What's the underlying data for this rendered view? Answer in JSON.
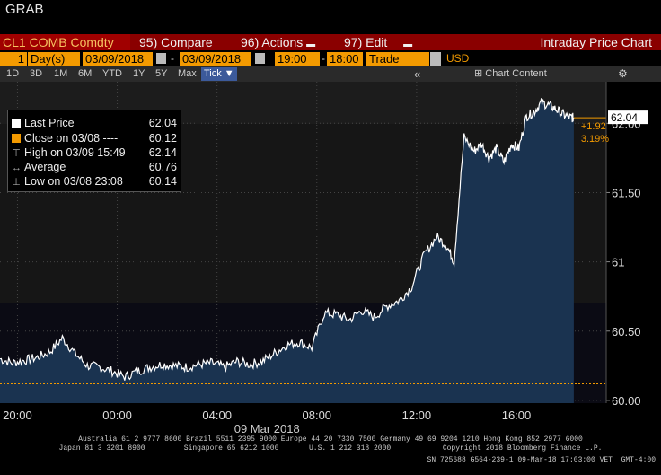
{
  "window_title": "GRAB",
  "menu": {
    "ticker": "CL1 COMB Comdty",
    "compare_num": "95)",
    "compare": "Compare",
    "actions_num": "96)",
    "actions": "Actions",
    "edit_num": "97)",
    "edit": "Edit",
    "title": "Intraday Price Chart"
  },
  "toolbar": {
    "period_value": "1",
    "period_unit": "Day(s)",
    "start_date": "03/09/2018",
    "date_sep": "-",
    "end_date": "03/09/2018",
    "start_time": "19:00",
    "time_sep": "-",
    "end_time": "18:00",
    "field": "Trade",
    "currency": "USD",
    "chart_content": "Chart Content"
  },
  "ranges": [
    "1D",
    "3D",
    "1M",
    "6M",
    "YTD",
    "1Y",
    "5Y",
    "Max"
  ],
  "tick_button": "Tick ▼",
  "legend": {
    "last_price_label": "Last Price",
    "last_price_value": "62.04",
    "close_label": "Close on 03/08 ----",
    "close_value": "60.12",
    "high_label": "High on 03/09 15:49",
    "high_value": "62.14",
    "average_label": "Average",
    "average_value": "60.76",
    "low_label": "Low on 03/08 23:08",
    "low_value": "60.14"
  },
  "annotations": {
    "change": "+1.92",
    "change_pct": "3.19%",
    "last_tag": "62.04"
  },
  "colors": {
    "accent": "#f39a00",
    "menu_red": "#8a0000",
    "area_fill": "#1a3350",
    "line": "#ffffff"
  },
  "chart_data": {
    "type": "area",
    "x_labels": [
      "20:00",
      "00:00",
      "04:00",
      "08:00",
      "12:00",
      "16:00"
    ],
    "date_label": "09 Mar 2018",
    "y_ticks": [
      "60.00",
      "60.50",
      "61",
      "61.50",
      "62.00"
    ],
    "ylim": [
      59.98,
      62.3
    ],
    "reference_line": 60.12,
    "x_hours": [
      0,
      0.5,
      1,
      1.5,
      2,
      2.5,
      3,
      3.5,
      4,
      4.5,
      5,
      5.5,
      6,
      6.5,
      7,
      7.5,
      8,
      8.5,
      9,
      9.5,
      10,
      10.5,
      11,
      11.5,
      12,
      12.5,
      13,
      13.5,
      14,
      14.5,
      15,
      15.5,
      16,
      16.5,
      17,
      17.5,
      17.9,
      18.2,
      18.6,
      19,
      19.3,
      19.6,
      19.9,
      20.2,
      20.5,
      20.8,
      21.1,
      21.4,
      21.7,
      22,
      22.3,
      22.6,
      22.9,
      23
    ],
    "values": [
      60.3,
      60.27,
      60.29,
      60.31,
      60.35,
      60.45,
      60.34,
      60.25,
      60.24,
      60.21,
      60.17,
      60.21,
      60.24,
      60.26,
      60.25,
      60.24,
      60.26,
      60.27,
      60.24,
      60.28,
      60.26,
      60.28,
      60.34,
      60.4,
      60.42,
      60.38,
      60.63,
      60.62,
      60.58,
      60.65,
      60.6,
      60.68,
      60.72,
      60.82,
      61.05,
      61.18,
      61.12,
      61.0,
      61.9,
      61.8,
      61.85,
      61.75,
      61.82,
      61.72,
      61.85,
      61.82,
      62.05,
      62.08,
      62.15,
      62.13,
      62.1,
      62.06,
      62.04,
      62.04
    ],
    "last_value": 62.04
  },
  "footer": {
    "line1": "Australia 61 2 9777 8600 Brazil 5511 2395 9000 Europe 44 20 7330 7500 Germany 49 69 9204 1210 Hong Kong 852 2977 6000",
    "line2": "Japan 81 3 3201 8900         Singapore 65 6212 1000       U.S. 1 212 318 2000            Copyright 2018 Bloomberg Finance L.P.",
    "line3": "SN 725688 G564-239-1 09-Mar-18 17:03:00 VET  GMT-4:00"
  }
}
